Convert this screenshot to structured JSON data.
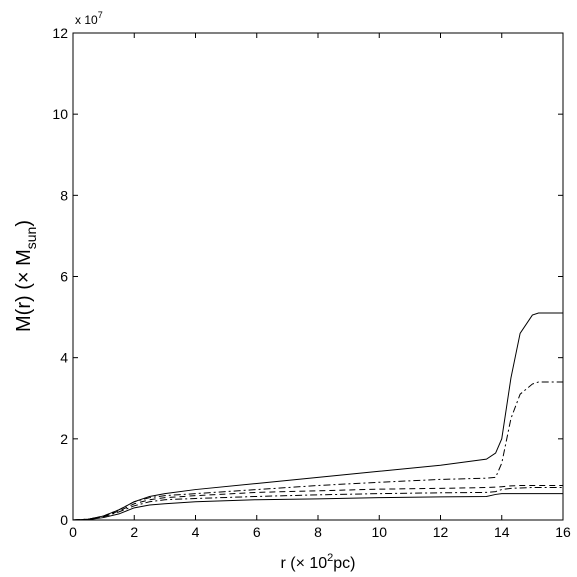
{
  "chart_data": {
    "type": "line",
    "xlabel": {
      "main": "r (× 10",
      "sup": "2",
      "end": "pc)"
    },
    "ylabel": {
      "main": "M(r) (× M",
      "sub": "sun",
      "end": ")"
    },
    "multiplier": {
      "base": "x 10",
      "exp": "7"
    },
    "x": [
      0,
      0.5,
      1,
      1.5,
      2,
      2.5,
      3,
      4,
      6,
      8,
      10,
      12,
      13.5,
      13.8,
      14,
      14.3,
      14.6,
      15,
      15.2,
      16
    ],
    "series": [
      {
        "color": "#000000",
        "linestyle": "solid",
        "values": [
          0,
          0.02,
          0.1,
          0.25,
          0.45,
          0.58,
          0.65,
          0.75,
          0.9,
          1.05,
          1.2,
          1.35,
          1.5,
          1.65,
          2.0,
          3.5,
          4.6,
          5.05,
          5.1,
          5.1
        ]
      },
      {
        "color": "#000000",
        "linestyle": "dashdot",
        "values": [
          0,
          0.02,
          0.1,
          0.25,
          0.45,
          0.55,
          0.6,
          0.65,
          0.75,
          0.85,
          0.93,
          1.0,
          1.03,
          1.05,
          1.4,
          2.5,
          3.1,
          3.35,
          3.4,
          3.4
        ]
      },
      {
        "color": "#000000",
        "linestyle": "dashed",
        "values": [
          0,
          0.02,
          0.09,
          0.22,
          0.4,
          0.5,
          0.55,
          0.6,
          0.68,
          0.72,
          0.76,
          0.78,
          0.8,
          0.81,
          0.82,
          0.84,
          0.85,
          0.85,
          0.85,
          0.85
        ]
      },
      {
        "color": "#000000",
        "linestyle": "dashdot",
        "values": [
          0,
          0.02,
          0.08,
          0.2,
          0.35,
          0.45,
          0.5,
          0.53,
          0.58,
          0.62,
          0.65,
          0.67,
          0.68,
          0.7,
          0.75,
          0.78,
          0.79,
          0.8,
          0.8,
          0.8
        ]
      },
      {
        "color": "#000000",
        "linestyle": "solid",
        "values": [
          0,
          0.01,
          0.06,
          0.15,
          0.3,
          0.37,
          0.4,
          0.45,
          0.5,
          0.52,
          0.55,
          0.57,
          0.58,
          0.63,
          0.65,
          0.65,
          0.65,
          0.65,
          0.65,
          0.65
        ]
      }
    ],
    "xlim": [
      0,
      16
    ],
    "xticks": [
      0,
      2,
      4,
      6,
      8,
      10,
      12,
      14,
      16
    ],
    "ylim": [
      0,
      12
    ],
    "yticks": [
      0,
      2,
      4,
      6,
      8,
      10,
      12
    ]
  }
}
